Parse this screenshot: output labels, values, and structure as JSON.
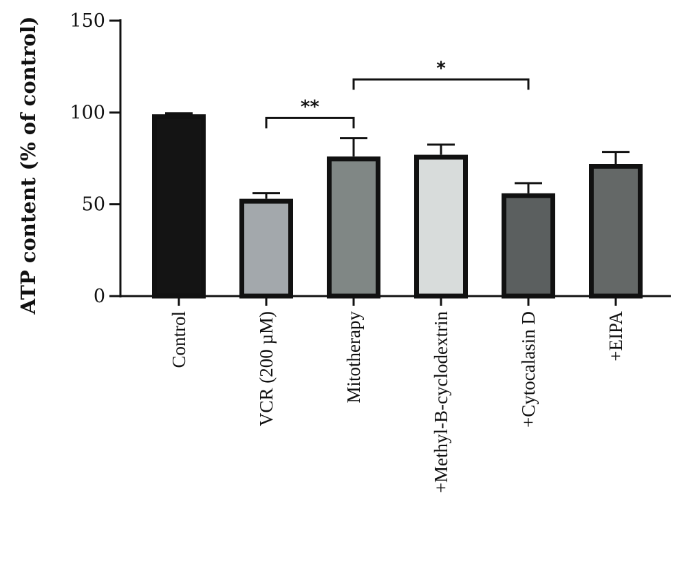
{
  "chart_data": {
    "type": "bar",
    "title": "",
    "xlabel": "",
    "ylabel": "ATP content (% of control)",
    "ylim": [
      0,
      150
    ],
    "yticks": [
      0,
      50,
      100,
      150
    ],
    "grid": false,
    "categories": [
      "Control",
      "VCR (200 µM)",
      "Mitotherapy",
      "+Methyl-B-cyclodextrin",
      "+Cytocalasin D",
      "+EIPA"
    ],
    "values": [
      99,
      53,
      76,
      77,
      56,
      72
    ],
    "errors": [
      0.5,
      3,
      10,
      5.5,
      5.5,
      6.5
    ],
    "colors": [
      "#141414",
      "#a3a8ac",
      "#808785",
      "#d8dcdb",
      "#5b5f5f",
      "#646867"
    ],
    "significance": [
      {
        "from": 1,
        "to": 2,
        "label": "**",
        "y": 97
      },
      {
        "from": 2,
        "to": 4,
        "label": "*",
        "y": 118
      }
    ]
  }
}
